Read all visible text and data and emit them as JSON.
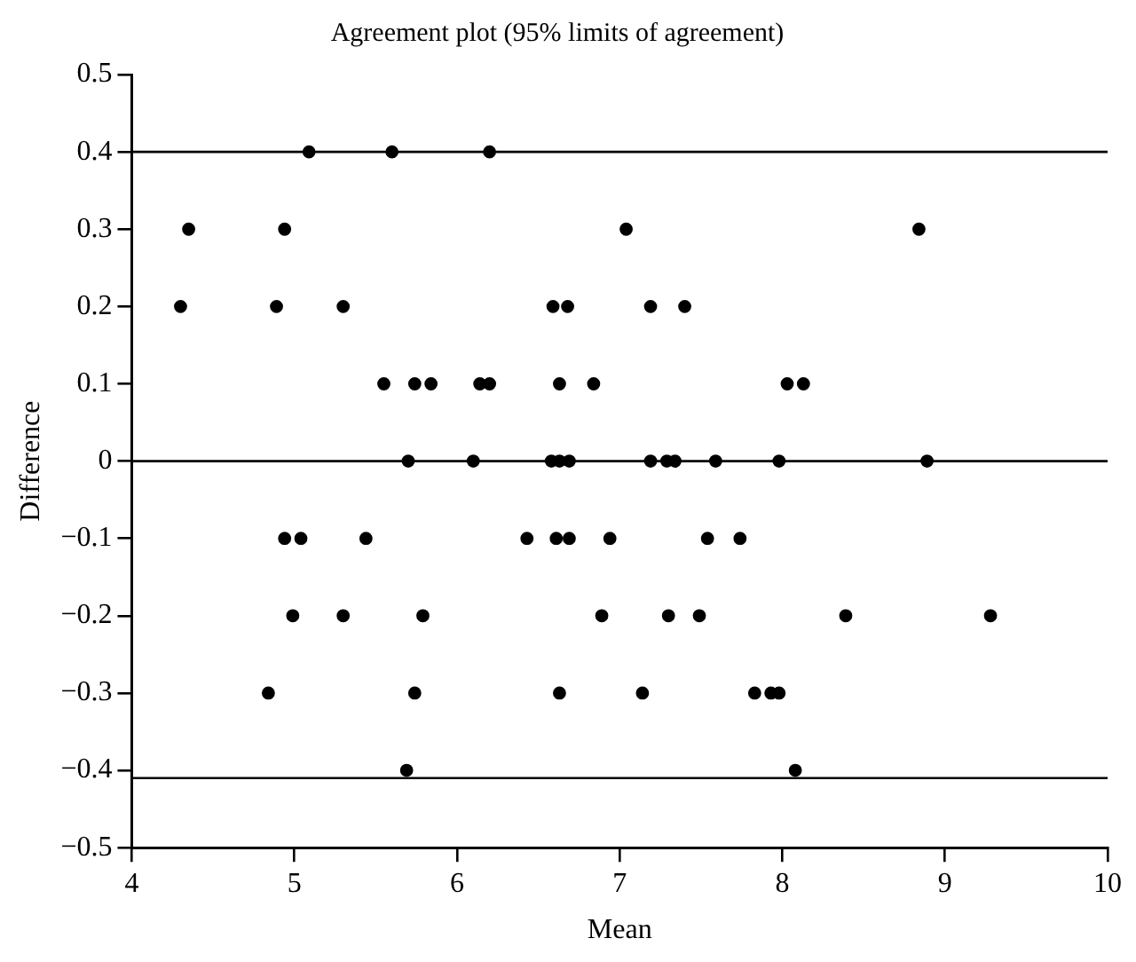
{
  "chart_data": {
    "type": "scatter",
    "title": "Agreement plot (95% limits of agreement)",
    "xlabel": "Mean",
    "ylabel": "Difference",
    "xlim": [
      4,
      10
    ],
    "xticks": [
      4,
      5,
      6,
      7,
      8,
      9,
      10
    ],
    "ylim": [
      -0.5,
      0.5
    ],
    "yticks": [
      -0.5,
      -0.4,
      -0.3,
      -0.2,
      -0.1,
      0,
      0.1,
      0.2,
      0.3,
      0.4,
      0.5
    ],
    "grid": false,
    "legend": false,
    "marker": "circle",
    "series": [
      {
        "color": "#000000",
        "x": [
          5.09,
          5.6,
          6.2,
          4.35,
          4.94,
          7.04,
          8.84,
          4.3,
          4.89,
          5.3,
          6.59,
          6.68,
          7.19,
          7.4,
          5.55,
          5.74,
          5.84,
          6.14,
          6.2,
          6.63,
          6.84,
          8.03,
          8.13,
          5.7,
          6.1,
          6.58,
          6.63,
          6.69,
          7.19,
          7.29,
          7.34,
          7.59,
          7.98,
          8.89,
          4.94,
          5.04,
          5.44,
          6.43,
          6.61,
          6.69,
          6.94,
          7.54,
          7.74,
          4.99,
          5.3,
          5.79,
          6.89,
          7.3,
          7.49,
          8.39,
          9.28,
          4.84,
          5.74,
          6.63,
          7.14,
          7.83,
          7.93,
          7.98,
          5.69,
          8.08
        ],
        "values": [
          0.4,
          0.4,
          0.4,
          0.3,
          0.3,
          0.3,
          0.3,
          0.2,
          0.2,
          0.2,
          0.2,
          0.2,
          0.2,
          0.2,
          0.1,
          0.1,
          0.1,
          0.1,
          0.1,
          0.1,
          0.1,
          0.1,
          0.1,
          0,
          0,
          0,
          0,
          0,
          0,
          0,
          0,
          0,
          0,
          0,
          -0.1,
          -0.1,
          -0.1,
          -0.1,
          -0.1,
          -0.1,
          -0.1,
          -0.1,
          -0.1,
          -0.2,
          -0.2,
          -0.2,
          -0.2,
          -0.2,
          -0.2,
          -0.2,
          -0.2,
          -0.3,
          -0.3,
          -0.3,
          -0.3,
          -0.3,
          -0.3,
          -0.3,
          -0.4,
          -0.4
        ]
      }
    ],
    "ref_lines": [
      {
        "axis": "y",
        "value": 0.4,
        "color": "#000000"
      },
      {
        "axis": "y",
        "value": 0,
        "color": "#000000"
      },
      {
        "axis": "y",
        "value": -0.41,
        "color": "#000000"
      }
    ]
  }
}
